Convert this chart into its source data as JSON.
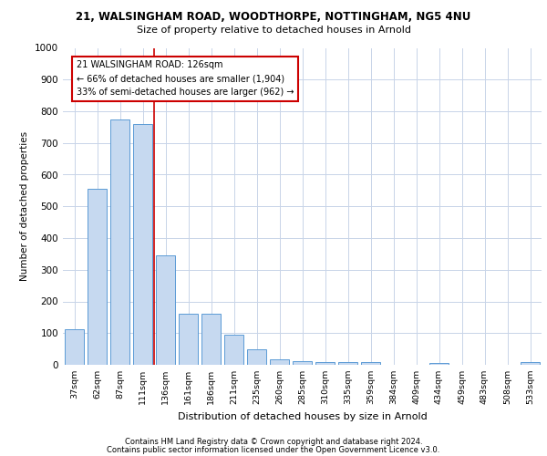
{
  "title1": "21, WALSINGHAM ROAD, WOODTHORPE, NOTTINGHAM, NG5 4NU",
  "title2": "Size of property relative to detached houses in Arnold",
  "xlabel": "Distribution of detached houses by size in Arnold",
  "ylabel": "Number of detached properties",
  "categories": [
    "37sqm",
    "62sqm",
    "87sqm",
    "111sqm",
    "136sqm",
    "161sqm",
    "186sqm",
    "211sqm",
    "235sqm",
    "260sqm",
    "285sqm",
    "310sqm",
    "335sqm",
    "359sqm",
    "384sqm",
    "409sqm",
    "434sqm",
    "459sqm",
    "483sqm",
    "508sqm",
    "533sqm"
  ],
  "values": [
    112,
    555,
    775,
    760,
    345,
    160,
    160,
    95,
    50,
    18,
    12,
    10,
    10,
    8,
    0,
    0,
    5,
    0,
    0,
    0,
    10
  ],
  "bar_color": "#c6d9f0",
  "bar_edge_color": "#5b9bd5",
  "annotation_line1": "21 WALSINGHAM ROAD: 126sqm",
  "annotation_line2": "← 66% of detached houses are smaller (1,904)",
  "annotation_line3": "33% of semi-detached houses are larger (962) →",
  "annotation_box_color": "#ffffff",
  "annotation_box_edge": "#cc0000",
  "vline_color": "#cc0000",
  "footer1": "Contains HM Land Registry data © Crown copyright and database right 2024.",
  "footer2": "Contains public sector information licensed under the Open Government Licence v3.0.",
  "ylim": [
    0,
    1000
  ],
  "yticks": [
    0,
    100,
    200,
    300,
    400,
    500,
    600,
    700,
    800,
    900,
    1000
  ],
  "background_color": "#ffffff",
  "grid_color": "#c8d4e8"
}
